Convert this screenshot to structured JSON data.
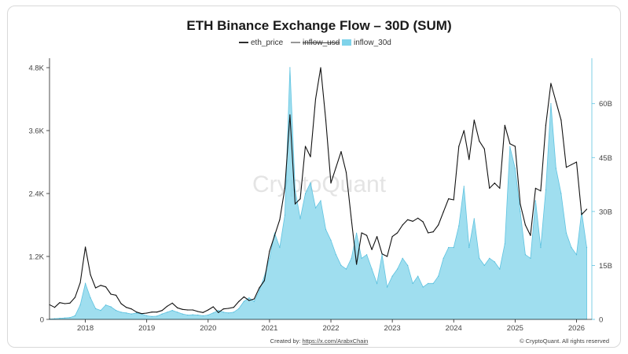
{
  "chart_data": {
    "type": "line",
    "title": "ETH Binance Exchange Flow – 30D (SUM)",
    "legend": [
      {
        "name": "eth_price",
        "color": "#111111",
        "style": "line",
        "hidden": false
      },
      {
        "name": "inflow_usd",
        "color": "#777777",
        "style": "line",
        "hidden": true
      },
      {
        "name": "inflow_30d",
        "color": "#7fd3ea",
        "style": "area",
        "hidden": false
      }
    ],
    "legend_position": "top-center",
    "grid": false,
    "x_ticks": [
      "2018",
      "2019",
      "2020",
      "2021",
      "2022",
      "2023",
      "2024",
      "2025",
      "2026"
    ],
    "x_range": [
      "2017-06",
      "2026-04"
    ],
    "y_left": {
      "ticks": [
        "0",
        "1.2K",
        "2.4K",
        "3.6K",
        "4.8K"
      ],
      "range": [
        0,
        4800
      ]
    },
    "y_right": {
      "ticks": [
        "0",
        "15B",
        "30B",
        "45B",
        "60B"
      ],
      "range": [
        0,
        70
      ]
    },
    "series": [
      {
        "name": "eth_price",
        "axis": "left",
        "points": [
          [
            "2017-06",
            280
          ],
          [
            "2017-07",
            230
          ],
          [
            "2017-08",
            320
          ],
          [
            "2017-09",
            300
          ],
          [
            "2017-10",
            310
          ],
          [
            "2017-11",
            420
          ],
          [
            "2017-12",
            700
          ],
          [
            "2018-01",
            1380
          ],
          [
            "2018-02",
            850
          ],
          [
            "2018-03",
            600
          ],
          [
            "2018-04",
            650
          ],
          [
            "2018-05",
            620
          ],
          [
            "2018-06",
            480
          ],
          [
            "2018-07",
            460
          ],
          [
            "2018-08",
            300
          ],
          [
            "2018-09",
            230
          ],
          [
            "2018-10",
            200
          ],
          [
            "2018-11",
            140
          ],
          [
            "2018-12",
            110
          ],
          [
            "2019-01",
            120
          ],
          [
            "2019-02",
            140
          ],
          [
            "2019-03",
            140
          ],
          [
            "2019-04",
            170
          ],
          [
            "2019-05",
            250
          ],
          [
            "2019-06",
            310
          ],
          [
            "2019-07",
            220
          ],
          [
            "2019-08",
            190
          ],
          [
            "2019-09",
            180
          ],
          [
            "2019-10",
            180
          ],
          [
            "2019-11",
            150
          ],
          [
            "2019-12",
            130
          ],
          [
            "2020-01",
            180
          ],
          [
            "2020-02",
            240
          ],
          [
            "2020-03",
            130
          ],
          [
            "2020-04",
            200
          ],
          [
            "2020-05",
            210
          ],
          [
            "2020-06",
            230
          ],
          [
            "2020-07",
            340
          ],
          [
            "2020-08",
            430
          ],
          [
            "2020-09",
            360
          ],
          [
            "2020-10",
            390
          ],
          [
            "2020-11",
            600
          ],
          [
            "2020-12",
            740
          ],
          [
            "2021-01",
            1300
          ],
          [
            "2021-02",
            1600
          ],
          [
            "2021-03",
            1900
          ],
          [
            "2021-04",
            2500
          ],
          [
            "2021-05",
            3900
          ],
          [
            "2021-06",
            2200
          ],
          [
            "2021-07",
            2300
          ],
          [
            "2021-08",
            3300
          ],
          [
            "2021-09",
            3100
          ],
          [
            "2021-10",
            4200
          ],
          [
            "2021-11",
            4800
          ],
          [
            "2021-12",
            3800
          ],
          [
            "2022-01",
            2600
          ],
          [
            "2022-02",
            2900
          ],
          [
            "2022-03",
            3200
          ],
          [
            "2022-04",
            2800
          ],
          [
            "2022-05",
            1900
          ],
          [
            "2022-06",
            1050
          ],
          [
            "2022-07",
            1650
          ],
          [
            "2022-08",
            1600
          ],
          [
            "2022-09",
            1330
          ],
          [
            "2022-10",
            1580
          ],
          [
            "2022-11",
            1250
          ],
          [
            "2022-12",
            1200
          ],
          [
            "2023-01",
            1580
          ],
          [
            "2023-02",
            1650
          ],
          [
            "2023-03",
            1800
          ],
          [
            "2023-04",
            1900
          ],
          [
            "2023-05",
            1870
          ],
          [
            "2023-06",
            1930
          ],
          [
            "2023-07",
            1860
          ],
          [
            "2023-08",
            1650
          ],
          [
            "2023-09",
            1670
          ],
          [
            "2023-10",
            1800
          ],
          [
            "2023-11",
            2050
          ],
          [
            "2023-12",
            2300
          ],
          [
            "2024-01",
            2280
          ],
          [
            "2024-02",
            3300
          ],
          [
            "2024-03",
            3600
          ],
          [
            "2024-04",
            3050
          ],
          [
            "2024-05",
            3800
          ],
          [
            "2024-06",
            3400
          ],
          [
            "2024-07",
            3250
          ],
          [
            "2024-08",
            2500
          ],
          [
            "2024-09",
            2600
          ],
          [
            "2024-10",
            2500
          ],
          [
            "2024-11",
            3700
          ],
          [
            "2024-12",
            3350
          ],
          [
            "2025-01",
            3300
          ],
          [
            "2025-02",
            2200
          ],
          [
            "2025-03",
            1800
          ],
          [
            "2025-04",
            1600
          ],
          [
            "2025-05",
            2500
          ],
          [
            "2025-06",
            2450
          ],
          [
            "2025-07",
            3700
          ],
          [
            "2025-08",
            4500
          ],
          [
            "2025-09",
            4150
          ],
          [
            "2025-10",
            3800
          ],
          [
            "2025-11",
            2900
          ],
          [
            "2025-12",
            2950
          ],
          [
            "2026-01",
            3000
          ],
          [
            "2026-02",
            2000
          ],
          [
            "2026-03",
            2100
          ]
        ]
      },
      {
        "name": "inflow_30d",
        "axis": "right",
        "points": [
          [
            "2017-06",
            0.1
          ],
          [
            "2017-07",
            0.2
          ],
          [
            "2017-08",
            0.3
          ],
          [
            "2017-09",
            0.4
          ],
          [
            "2017-10",
            0.5
          ],
          [
            "2017-11",
            1
          ],
          [
            "2017-12",
            4
          ],
          [
            "2018-01",
            10
          ],
          [
            "2018-02",
            6
          ],
          [
            "2018-03",
            3
          ],
          [
            "2018-04",
            2.5
          ],
          [
            "2018-05",
            4
          ],
          [
            "2018-06",
            3.5
          ],
          [
            "2018-07",
            2.5
          ],
          [
            "2018-08",
            2
          ],
          [
            "2018-09",
            1.8
          ],
          [
            "2018-10",
            1.5
          ],
          [
            "2018-11",
            1.8
          ],
          [
            "2018-12",
            1.5
          ],
          [
            "2019-01",
            1
          ],
          [
            "2019-02",
            0.8
          ],
          [
            "2019-03",
            0.9
          ],
          [
            "2019-04",
            1.5
          ],
          [
            "2019-05",
            2
          ],
          [
            "2019-06",
            2.5
          ],
          [
            "2019-07",
            2
          ],
          [
            "2019-08",
            1.5
          ],
          [
            "2019-09",
            1.2
          ],
          [
            "2019-10",
            1.3
          ],
          [
            "2019-11",
            1.2
          ],
          [
            "2019-12",
            1
          ],
          [
            "2020-01",
            1.2
          ],
          [
            "2020-02",
            1.8
          ],
          [
            "2020-03",
            2.5
          ],
          [
            "2020-04",
            2
          ],
          [
            "2020-05",
            1.8
          ],
          [
            "2020-06",
            2
          ],
          [
            "2020-07",
            3
          ],
          [
            "2020-08",
            5
          ],
          [
            "2020-09",
            6
          ],
          [
            "2020-10",
            5
          ],
          [
            "2020-11",
            8
          ],
          [
            "2020-12",
            12
          ],
          [
            "2021-01",
            17
          ],
          [
            "2021-02",
            24
          ],
          [
            "2021-03",
            20
          ],
          [
            "2021-04",
            29
          ],
          [
            "2021-05",
            70
          ],
          [
            "2021-06",
            36
          ],
          [
            "2021-07",
            28
          ],
          [
            "2021-08",
            35
          ],
          [
            "2021-09",
            38
          ],
          [
            "2021-10",
            31
          ],
          [
            "2021-11",
            33
          ],
          [
            "2021-12",
            25
          ],
          [
            "2022-01",
            22
          ],
          [
            "2022-02",
            18
          ],
          [
            "2022-03",
            15
          ],
          [
            "2022-04",
            14
          ],
          [
            "2022-05",
            17
          ],
          [
            "2022-06",
            24
          ],
          [
            "2022-07",
            17
          ],
          [
            "2022-08",
            18
          ],
          [
            "2022-09",
            14
          ],
          [
            "2022-10",
            10
          ],
          [
            "2022-11",
            18
          ],
          [
            "2022-12",
            9
          ],
          [
            "2023-01",
            12
          ],
          [
            "2023-02",
            14
          ],
          [
            "2023-03",
            17
          ],
          [
            "2023-04",
            15
          ],
          [
            "2023-05",
            10
          ],
          [
            "2023-06",
            12
          ],
          [
            "2023-07",
            9
          ],
          [
            "2023-08",
            10
          ],
          [
            "2023-09",
            10
          ],
          [
            "2023-10",
            12
          ],
          [
            "2023-11",
            17
          ],
          [
            "2023-12",
            20
          ],
          [
            "2024-01",
            20
          ],
          [
            "2024-02",
            26
          ],
          [
            "2024-03",
            37
          ],
          [
            "2024-04",
            20
          ],
          [
            "2024-05",
            28
          ],
          [
            "2024-06",
            17
          ],
          [
            "2024-07",
            15
          ],
          [
            "2024-08",
            17
          ],
          [
            "2024-09",
            16
          ],
          [
            "2024-10",
            14
          ],
          [
            "2024-11",
            21
          ],
          [
            "2024-12",
            48
          ],
          [
            "2025-01",
            42
          ],
          [
            "2025-02",
            30
          ],
          [
            "2025-03",
            18
          ],
          [
            "2025-04",
            17
          ],
          [
            "2025-05",
            33
          ],
          [
            "2025-06",
            20
          ],
          [
            "2025-07",
            36
          ],
          [
            "2025-08",
            60
          ],
          [
            "2025-09",
            42
          ],
          [
            "2025-10",
            35
          ],
          [
            "2025-11",
            24
          ],
          [
            "2025-12",
            20
          ],
          [
            "2026-01",
            18
          ],
          [
            "2026-02",
            30
          ],
          [
            "2026-03",
            20
          ]
        ]
      }
    ]
  },
  "watermark": "CryptoQuant",
  "footer": {
    "credit_prefix": "Created by: ",
    "credit_link": "https://x.com/ArabxChain",
    "copyright": "© CryptoQuant. All rights reserved"
  }
}
